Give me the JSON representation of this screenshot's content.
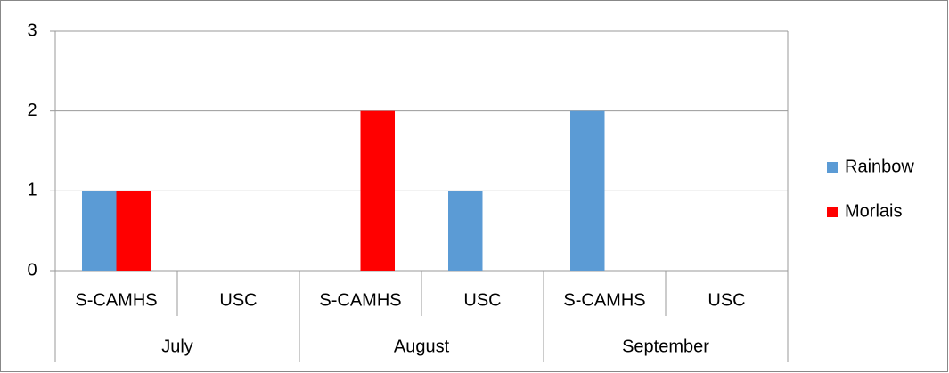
{
  "chart_data": {
    "type": "bar",
    "groups": [
      "July",
      "August",
      "September"
    ],
    "categories": [
      "S-CAMHS",
      "USC",
      "S-CAMHS",
      "USC",
      "S-CAMHS",
      "USC"
    ],
    "series": [
      {
        "name": "Rainbow",
        "color": "#5b9bd5",
        "values": [
          1,
          0,
          0,
          1,
          2,
          0
        ]
      },
      {
        "name": "Morlais",
        "color": "#ff0000",
        "values": [
          1,
          0,
          2,
          0,
          0,
          0
        ]
      }
    ],
    "ylim": [
      0,
      3
    ],
    "yticks": [
      0,
      1,
      2,
      3
    ],
    "grid": true,
    "legend": "right"
  }
}
